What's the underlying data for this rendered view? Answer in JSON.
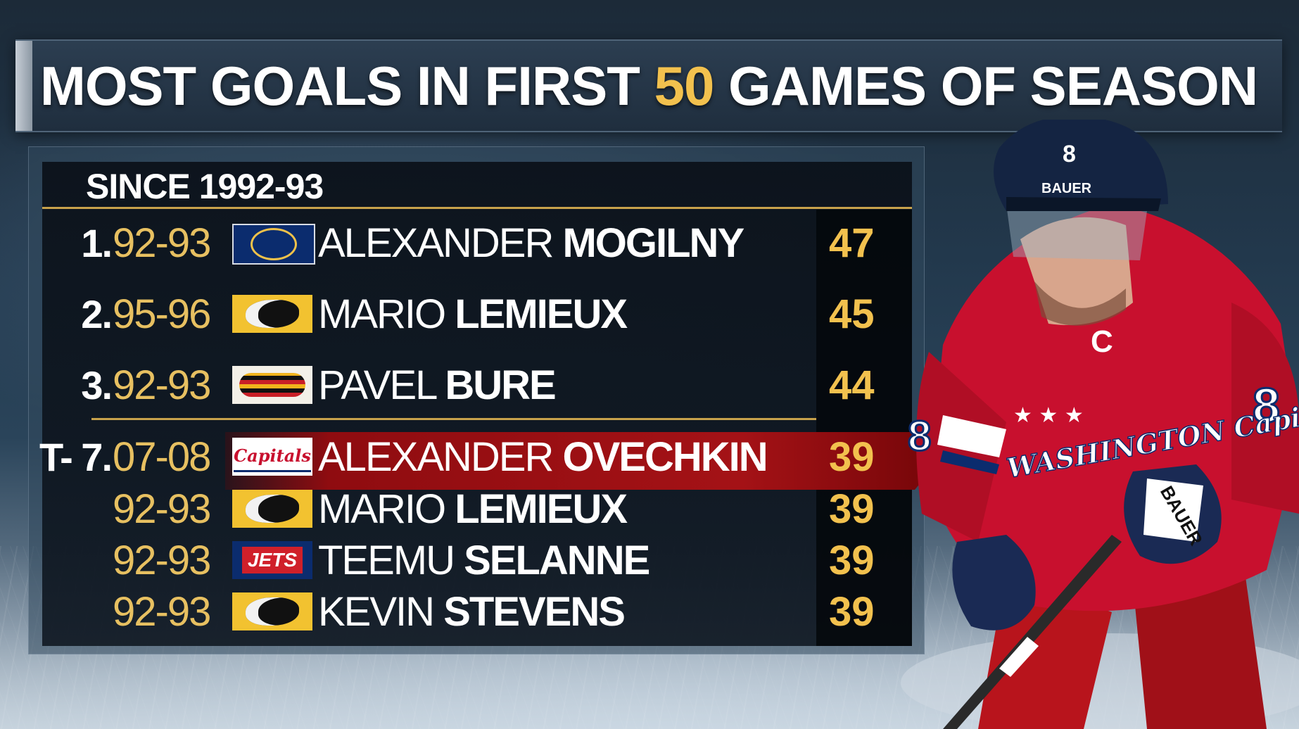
{
  "title": {
    "pre": "MOST GOALS IN FIRST ",
    "highlight": "50",
    "post": " GAMES OF SEASON"
  },
  "subtitle": "SINCE 1992-93",
  "rows": [
    {
      "rank": "1.",
      "season": "92-93",
      "team_logo": "sabres-logo",
      "first": "ALEXANDER",
      "last": "MOGILNY",
      "goals": "47"
    },
    {
      "rank": "2.",
      "season": "95-96",
      "team_logo": "penguins-logo",
      "first": "MARIO",
      "last": "LEMIEUX",
      "goals": "45"
    },
    {
      "rank": "3.",
      "season": "92-93",
      "team_logo": "canucks-logo",
      "first": "PAVEL",
      "last": "BURE",
      "goals": "44"
    },
    {
      "rank": "T- 7.",
      "season": "07-08",
      "team_logo": "capitals-logo",
      "logo_text": "Capitals",
      "first": "ALEXANDER",
      "last": "OVECHKIN",
      "goals": "39",
      "highlighted": true
    },
    {
      "rank": "",
      "season": "92-93",
      "team_logo": "penguins-logo",
      "first": "MARIO",
      "last": "LEMIEUX",
      "goals": "39"
    },
    {
      "rank": "",
      "season": "92-93",
      "team_logo": "jets-logo",
      "logo_text": "JETS",
      "first": "TEEMU",
      "last": "SELANNE",
      "goals": "39"
    },
    {
      "rank": "",
      "season": "92-93",
      "team_logo": "penguins-logo",
      "first": "KEVIN",
      "last": "STEVENS",
      "goals": "39"
    }
  ],
  "player_image": {
    "jersey_number": "8",
    "jersey_text": "WASHINGTON Capitals",
    "helmet_brand": "BAUER",
    "glove_brand": "BAUER",
    "captain_mark": "C"
  },
  "colors": {
    "gold": "#f2c14e",
    "highlight_red": "#a41216",
    "caps_red": "#c8102e",
    "caps_navy": "#0b2c6e"
  }
}
